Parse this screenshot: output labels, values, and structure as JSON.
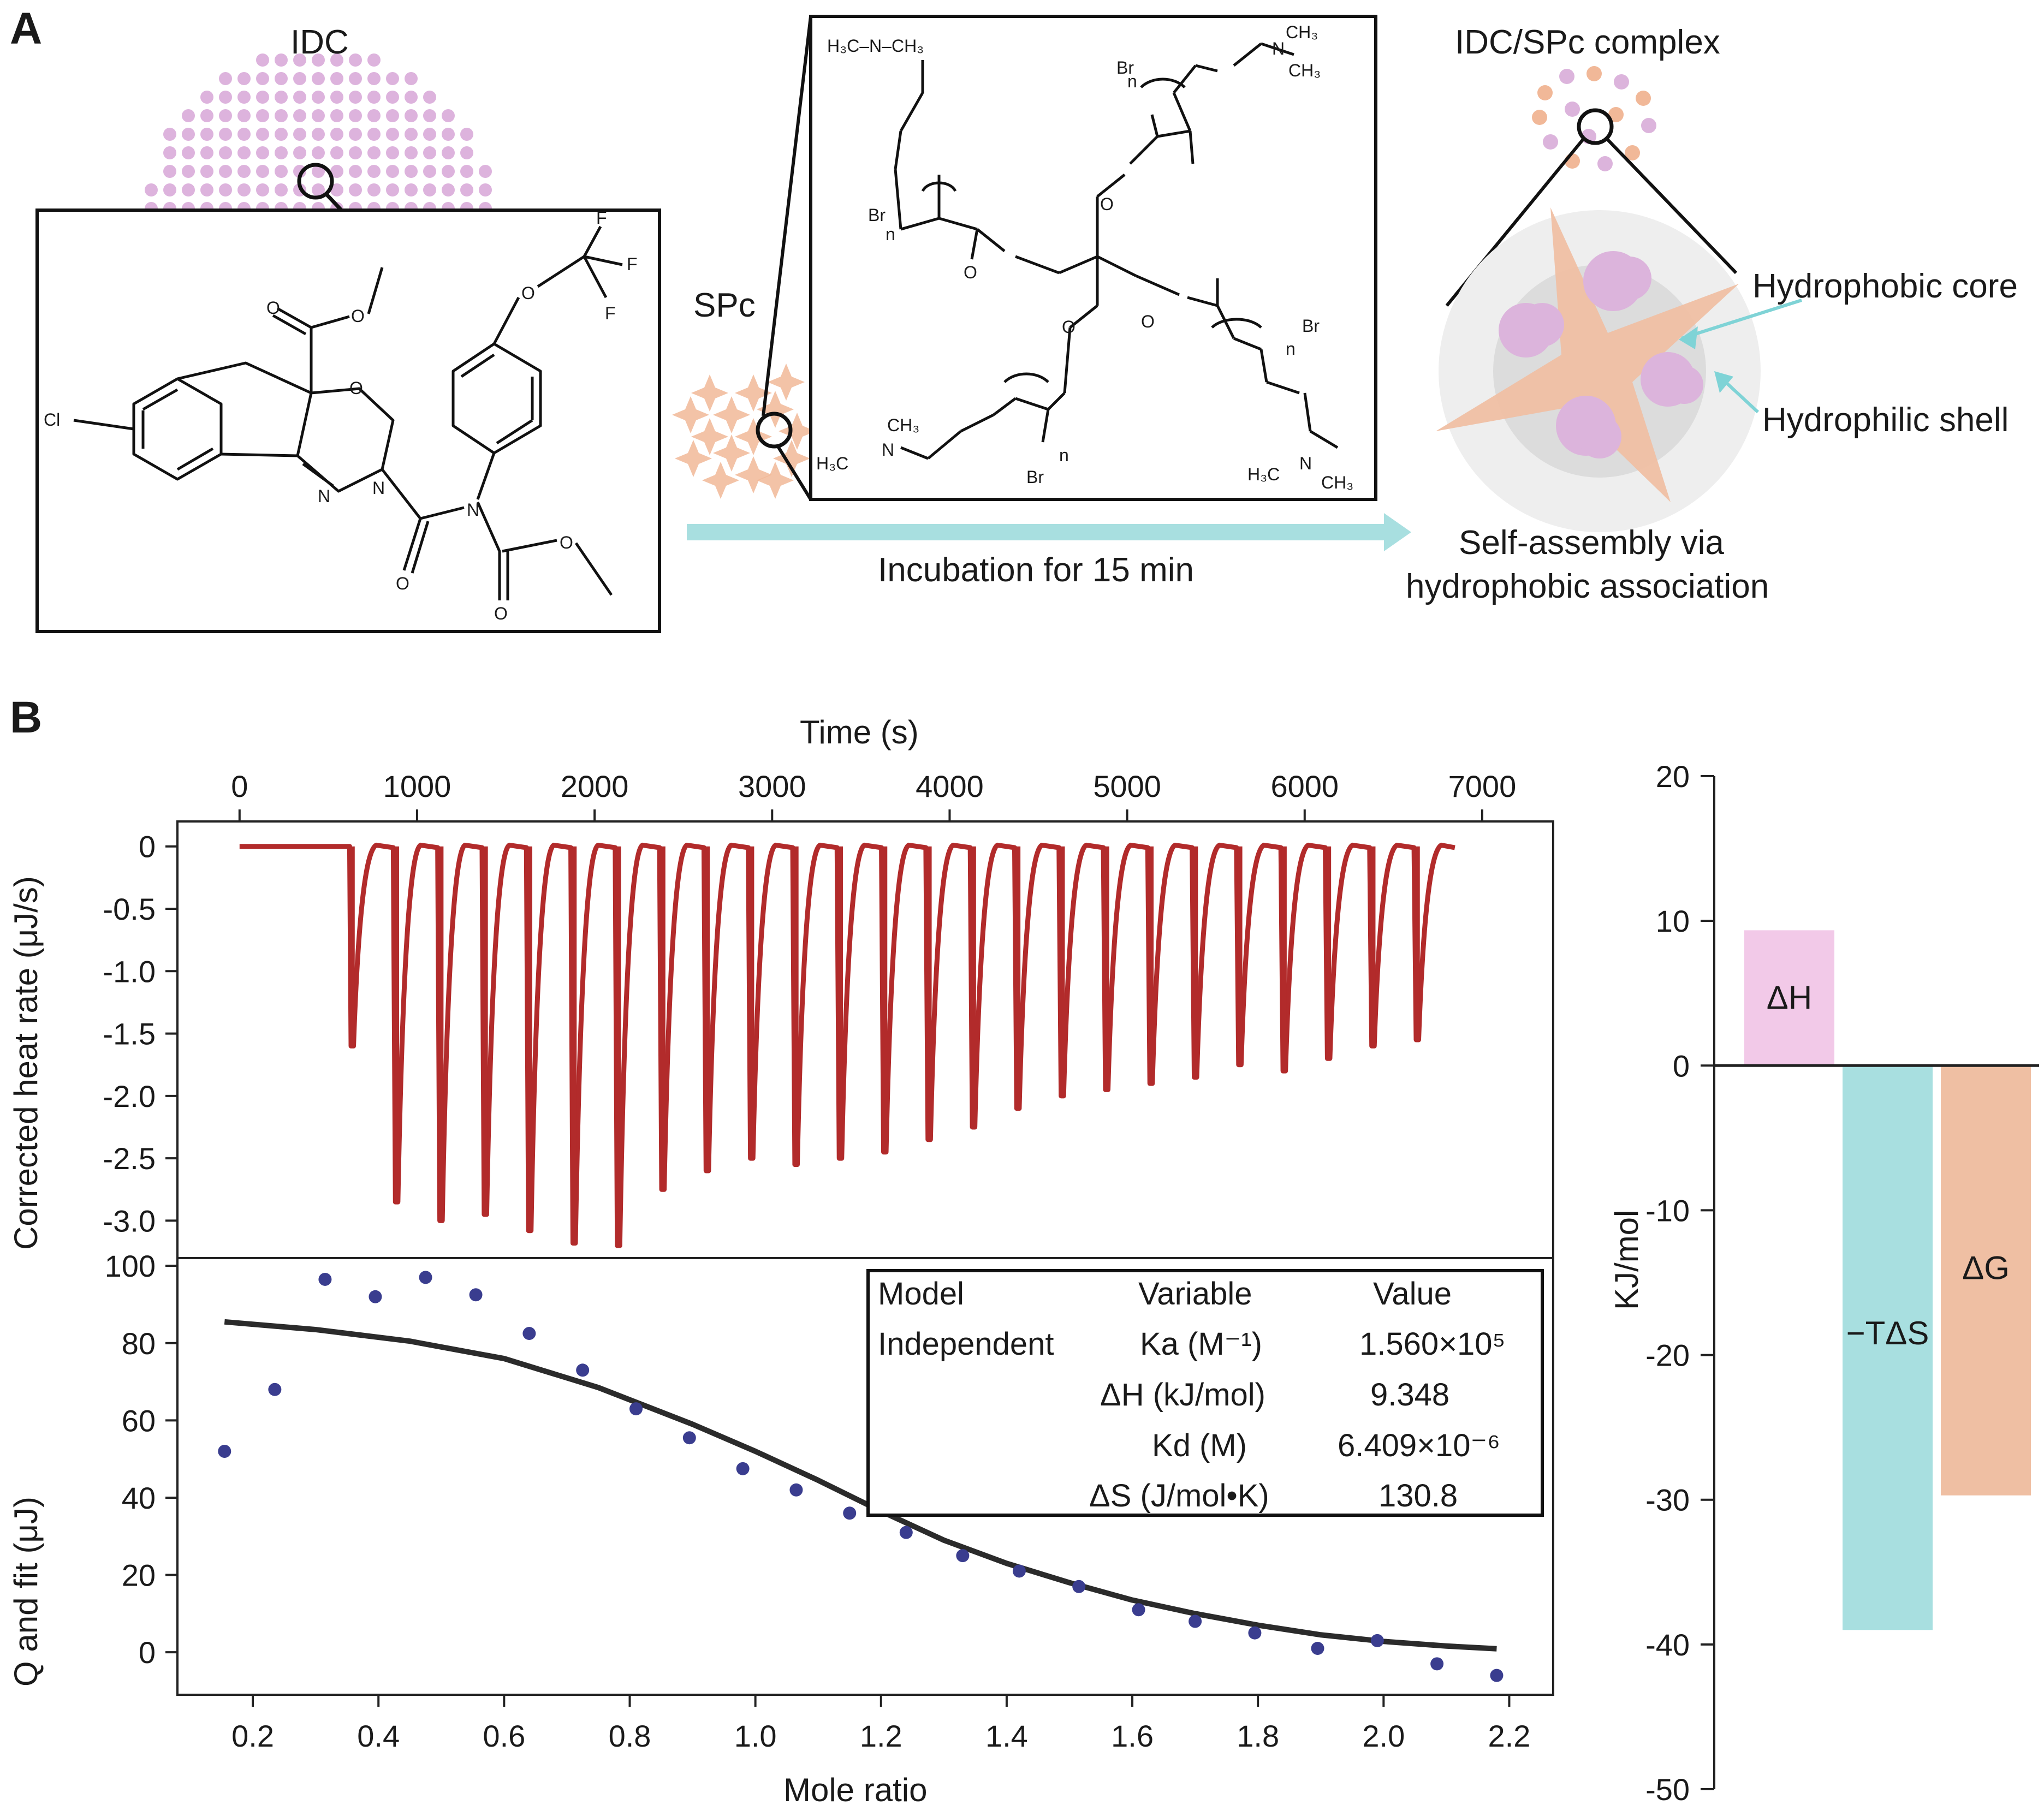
{
  "panel_a": {
    "letter": "A",
    "idc_label": "IDC",
    "spc_label": "SPc",
    "complex_label": "IDC/SPc complex",
    "core_label": "Hydrophobic core",
    "shell_label": "Hydrophilic shell",
    "incubation_label": "Incubation for 15 min",
    "assembly_line1": "Self-assembly via",
    "assembly_line2": "hydrophobic association",
    "idc_atoms": {
      "cl": "Cl",
      "o1": "O",
      "o2": "O",
      "o3": "O",
      "o4": "O",
      "o5": "O",
      "o6": "O",
      "o7": "O",
      "n1": "N",
      "n2": "N",
      "n3": "N",
      "f1": "F",
      "f2": "F",
      "f3": "F"
    },
    "spc_atoms": {
      "nme2": "H₃C–N–CH₃",
      "h3c": "H₃C",
      "ch3": "CH₃",
      "n": "N",
      "br": "Br",
      "o": "O",
      "rep": "n"
    }
  },
  "panel_b": {
    "letter": "B",
    "colors": {
      "trace": "#b22b2b",
      "points": "#3a3d8f",
      "fit": "#2b2b2b",
      "dH": "#f2c9e8",
      "TdS": "#a8dfe0",
      "dG": "#efbfa3"
    }
  },
  "chart_data": [
    {
      "type": "line",
      "title": "",
      "top_xlabel": "Time (s)",
      "ylabel": "Corrected heat rate (μJ/s)",
      "xlim": [
        -350,
        7400
      ],
      "ylim": [
        -3.3,
        0.2
      ],
      "x_ticks": [
        0,
        1000,
        2000,
        3000,
        4000,
        5000,
        6000,
        7000
      ],
      "x_tick_labels": [
        "0",
        "1000",
        "2000",
        "3000",
        "4000",
        "5000",
        "6000",
        "7000"
      ],
      "y_ticks": [
        0,
        -0.5,
        -1.0,
        -1.5,
        -2.0,
        -2.5,
        -3.0
      ],
      "y_tick_labels": [
        "0",
        "-0.5",
        "-1.0",
        "-1.5",
        "-2.0",
        "-2.5",
        "-3.0"
      ],
      "baseline_until": 620,
      "trace_end": 6850,
      "injection_times": [
        620,
        870,
        1120,
        1370,
        1620,
        1870,
        2120,
        2370,
        2620,
        2870,
        3120,
        3370,
        3620,
        3870,
        4120,
        4370,
        4620,
        4870,
        5120,
        5370,
        5620,
        5870,
        6120,
        6370,
        6620
      ],
      "peak_values": [
        -1.6,
        -2.85,
        -3.0,
        -2.95,
        -3.08,
        -3.18,
        -3.2,
        -2.75,
        -2.6,
        -2.5,
        -2.55,
        -2.5,
        -2.45,
        -2.35,
        -2.25,
        -2.1,
        -2.0,
        -1.95,
        -1.9,
        -1.85,
        -1.75,
        -1.8,
        -1.7,
        -1.6,
        -1.55
      ]
    },
    {
      "type": "scatter",
      "title": "",
      "xlabel": "Mole ratio",
      "ylabel": "Q and fit (μJ)",
      "xlim": [
        0.08,
        2.27
      ],
      "ylim": [
        -11,
        102
      ],
      "x_ticks": [
        0.2,
        0.4,
        0.6,
        0.8,
        1.0,
        1.2,
        1.4,
        1.6,
        1.8,
        2.0,
        2.2
      ],
      "x_tick_labels": [
        "0.2",
        "0.4",
        "0.6",
        "0.8",
        "1.0",
        "1.2",
        "1.4",
        "1.6",
        "1.8",
        "2.0",
        "2.2"
      ],
      "y_ticks": [
        0,
        20,
        40,
        60,
        80,
        100
      ],
      "y_tick_labels": [
        "0",
        "20",
        "40",
        "60",
        "80",
        "100"
      ],
      "series": [
        {
          "name": "Q",
          "x": [
            0.155,
            0.235,
            0.315,
            0.395,
            0.475,
            0.555,
            0.64,
            0.725,
            0.81,
            0.895,
            0.98,
            1.065,
            1.15,
            1.24,
            1.33,
            1.42,
            1.515,
            1.61,
            1.7,
            1.795,
            1.895,
            1.99,
            2.085,
            2.18
          ],
          "y": [
            52,
            68,
            96.5,
            92,
            97,
            92.5,
            82.5,
            73,
            63,
            55.5,
            47.5,
            42,
            36,
            31,
            25,
            21,
            17,
            11,
            8,
            5,
            1,
            3,
            -3,
            -6
          ]
        },
        {
          "name": "fit",
          "x": [
            0.155,
            0.3,
            0.45,
            0.6,
            0.75,
            0.9,
            1.0,
            1.1,
            1.2,
            1.3,
            1.4,
            1.5,
            1.6,
            1.7,
            1.8,
            1.9,
            2.0,
            2.1,
            2.18
          ],
          "y": [
            85.5,
            83.5,
            80.5,
            76,
            68.5,
            59,
            52,
            44.5,
            36.5,
            29,
            23,
            18,
            13.5,
            10,
            7,
            4.5,
            2.8,
            1.6,
            0.9
          ]
        }
      ],
      "table": {
        "headers": [
          "Model",
          "Variable",
          "Value"
        ],
        "rows": [
          [
            "Independent",
            "Ka (M⁻¹)",
            "1.560×10⁵"
          ],
          [
            "",
            "ΔH (kJ/mol)",
            "9.348"
          ],
          [
            "",
            "Kd (M)",
            "6.409×10⁻⁶"
          ],
          [
            "",
            "ΔS (J/mol•K)",
            "130.8"
          ]
        ]
      }
    },
    {
      "type": "bar",
      "title": "",
      "ylabel": "KJ/mol",
      "ylim": [
        -50,
        20
      ],
      "y_ticks": [
        20,
        10,
        0,
        -10,
        -20,
        -30,
        -40,
        -50
      ],
      "y_tick_labels": [
        "20",
        "10",
        "0",
        "-10",
        "-20",
        "-30",
        "-40",
        "-50"
      ],
      "categories": [
        "ΔH",
        "−TΔS",
        "ΔG"
      ],
      "values": [
        9.35,
        -39.0,
        -29.7
      ]
    }
  ]
}
